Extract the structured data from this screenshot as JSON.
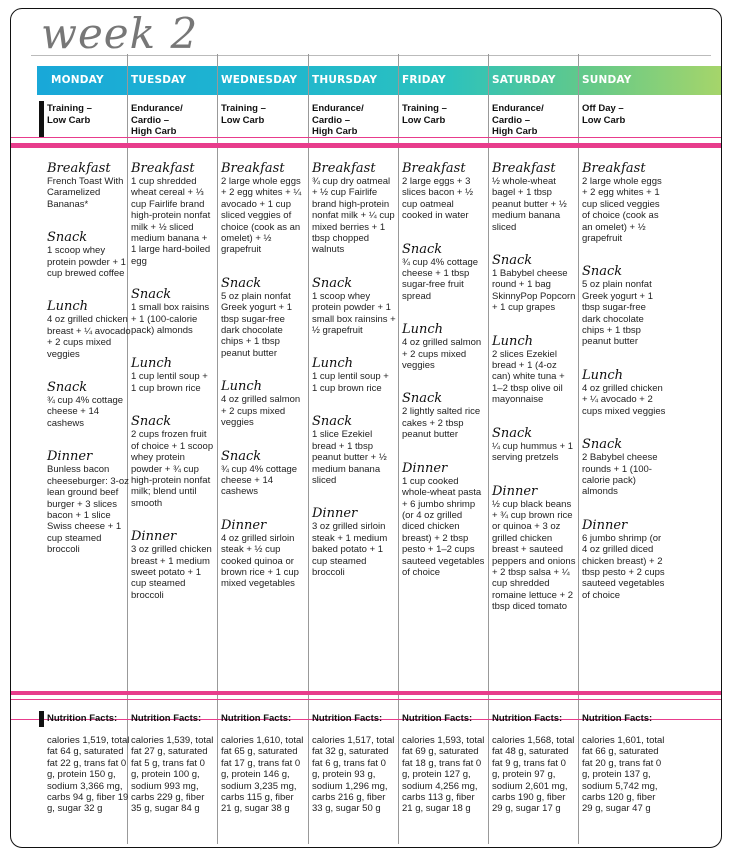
{
  "title": "week 2",
  "colors": {
    "accent_pink": "#e83c8c",
    "gradient_start": "#19a8d8",
    "gradient_end": "#a6d56a"
  },
  "days": [
    {
      "name": "MONDAY",
      "type": "Training –\nLow Carb",
      "meals": [
        {
          "label": "Breakfast",
          "text": "French Toast With Caramel­ized Bananas*"
        },
        {
          "label": "Snack",
          "text": "1 scoop whey protein powder + 1 cup brewed coffee"
        },
        {
          "label": "Lunch",
          "text": "4 oz grilled chicken breast + ¼ avocado + 2 cups mixed veggies"
        },
        {
          "label": "Snack",
          "text": "¾ cup 4% cot­tage cheese + 14 cashews"
        },
        {
          "label": "Dinner",
          "text": "Bunless bacon cheeseburger: 3-oz lean ground beef burger + 3 slices bacon + 1 slice Swiss cheese + 1 cup steamed broccoli"
        }
      ],
      "nutrition": "calories 1,519, total fat 64 g, saturated fat 22 g, trans fat 0 g, protein 150 g, sodium 3,366 mg, carbs 94 g, fiber 19 g, sugar 32 g"
    },
    {
      "name": "TUESDAY",
      "type": "Endurance/\nCardio –\nHigh Carb",
      "meals": [
        {
          "label": "Breakfast",
          "text": "1 cup shredded wheat cereal + ⅓ cup Fairlife brand high-protein nonfat milk + ½ sliced medium banana + 1 large hard-boiled egg"
        },
        {
          "label": "Snack",
          "text": "1 small box raisins + 1 (100-calorie pack) almonds"
        },
        {
          "label": "Lunch",
          "text": "1 cup lentil soup + 1 cup brown rice"
        },
        {
          "label": "Snack",
          "text": "2 cups frozen fruit of choice + 1 scoop whey protein powder + ¾ cup high-protein nonfat milk; blend until smooth"
        },
        {
          "label": "Dinner",
          "text": "3 oz grilled chicken breast + 1 medium sweet potato + 1 cup steamed broccoli"
        }
      ],
      "nutrition": "calories 1,539, total fat 27 g, saturated fat 5 g, trans fat 0 g, protein 100 g, sodium 993 mg, carbs 229 g, fiber 35 g, sugar 84 g"
    },
    {
      "name": "WEDNESDAY",
      "type": "Training –\nLow Carb",
      "meals": [
        {
          "label": "Breakfast",
          "text": "2 large whole eggs + 2 egg whites + ¼ avocado + 1 cup sliced veggies of choice (cook as an omelet) + ½ grapefruit"
        },
        {
          "label": "Snack",
          "text": "5 oz plain nonfat Greek yogurt + 1 tbsp sugar-free dark chocolate chips + 1 tbsp peanut butter"
        },
        {
          "label": "Lunch",
          "text": "4 oz grilled salmon + 2 cups mixed veggies"
        },
        {
          "label": "Snack",
          "text": "¾ cup 4% cot­tage cheese + 14 cashews"
        },
        {
          "label": "Dinner",
          "text": "4 oz grilled sirloin steak + ½ cup cooked quinoa or brown rice + 1 cup mixed veg­etables"
        }
      ],
      "nutrition": "calories 1,610, total fat 65 g, saturated fat 17 g, trans fat 0 g, protein 146 g, sodium 3,235 mg, carbs 115 g, fiber 21 g, sugar 38 g"
    },
    {
      "name": "THURSDAY",
      "type": "Endurance/\nCardio –\nHigh Carb",
      "meals": [
        {
          "label": "Breakfast",
          "text": "¾ cup dry oatmeal + ½ cup Fairlife brand high-protein nonfat milk + ¼ cup mixed berries + 1 tbsp chopped walnuts"
        },
        {
          "label": "Snack",
          "text": "1 scoop whey protein powder + 1 small box rainsins + ½ grapefruit"
        },
        {
          "label": "Lunch",
          "text": "1 cup lentil soup + 1 cup brown rice"
        },
        {
          "label": "Snack",
          "text": "1 slice Ezekiel bread + 1 tbsp peanut butter + ½ medium banana sliced"
        },
        {
          "label": "Dinner",
          "text": "3 oz grilled sirloin steak + 1 medium baked potato + 1 cup steamed broccoli"
        }
      ],
      "nutrition": "calories 1,517, total fat 32 g, saturated fat 6 g, trans fat 0 g, protein 93 g, sodium 1,296 mg, carbs 216 g, fiber 33 g, sugar 50 g"
    },
    {
      "name": "FRIDAY",
      "type": "Training –\nLow Carb",
      "meals": [
        {
          "label": "Breakfast",
          "text": "2 large eggs + 3 slices bacon + ½ cup oatmeal cooked in water"
        },
        {
          "label": "Snack",
          "text": "¾ cup 4% cottage cheese + 1 tbsp sugar-free fruit spread"
        },
        {
          "label": "Lunch",
          "text": "4 oz grilled salmon + 2 cups mixed veggies"
        },
        {
          "label": "Snack",
          "text": "2 lightly salted rice cakes + 2 tbsp peanut butter"
        },
        {
          "label": "Dinner",
          "text": "1 cup cooked whole-wheat pasta + 6 jumbo shrimp (or 4 oz grilled diced chicken breast) + 2 tbsp pesto + 1–2 cups sauteed vegetables of choice"
        }
      ],
      "nutrition": "calories 1,593, total fat 69 g, saturated fat 18 g, trans fat 0 g, protein 127 g, sodium 4,256 mg, carbs 113 g, fiber 21 g, sugar 18 g"
    },
    {
      "name": "SATURDAY",
      "type": "Endurance/\nCardio –\nHigh Carb",
      "meals": [
        {
          "label": "Breakfast",
          "text": "½ whole-wheat bagel + 1 tbsp peanut butter + ½ medium banana sliced"
        },
        {
          "label": "Snack",
          "text": "1 Babybel cheese round + 1 bag SkinnyPop Popcorn + 1 cup grapes"
        },
        {
          "label": "Lunch",
          "text": "2 slices Ezekiel bread + 1 (4-oz can) white tuna + 1–2 tbsp olive oil mayonnaise"
        },
        {
          "label": "Snack",
          "text": "¼ cup hummus + 1 serving pretzels"
        },
        {
          "label": "Dinner",
          "text": "½ cup black beans + ¾ cup brown rice or qui­noa + 3 oz grilled chicken breast + sauteed pep­pers and onions + 2 tbsp salsa + ¼ cup shredded romaine lettuce + 2 tbsp diced tomato"
        }
      ],
      "nutrition": "calories 1,568, total fat 48 g, saturated fat 9 g, trans fat 0 g, protein 97 g, sodium 2,601 mg, carbs 190 g, fiber 29 g, sugar 17 g"
    },
    {
      "name": "SUNDAY",
      "type": "Off Day –\nLow Carb",
      "meals": [
        {
          "label": "Breakfast",
          "text": "2 large whole eggs + 2 egg whites + 1 cup sliced veggies of choice (cook as an omelet) + ½ grapefruit"
        },
        {
          "label": "Snack",
          "text": "5 oz plain nonfat Greek yogurt + 1 tbsp sugar-free dark chocolate chips + 1 tbsp peanut butter"
        },
        {
          "label": "Lunch",
          "text": "4 oz grilled chicken + ¼ avocado + 2 cups mixed veggies"
        },
        {
          "label": "Snack",
          "text": "2 Babybel cheese rounds + 1 (100-calorie pack) almonds"
        },
        {
          "label": "Dinner",
          "text": "6 jumbo shrimp (or 4 oz grilled diced chicken breast) + 2 tbsp pesto + 2 cups sauteed vegeta­bles of choice"
        }
      ],
      "nutrition": "calories 1,601, total fat 66 g, saturated fat 20 g, trans fat 0 g, protein 137 g, sodium 5,742 mg, carbs 120 g, fiber 29 g, sugar 47 g"
    }
  ],
  "nutrition_label": "Nutrition Facts:"
}
